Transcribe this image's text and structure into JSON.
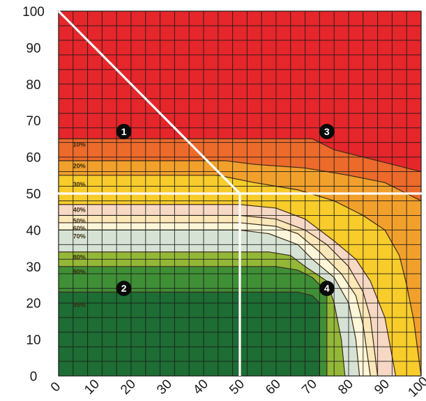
{
  "chart_data": {
    "type": "heatmap",
    "title": "",
    "xlabel": "",
    "ylabel": "",
    "xlim": [
      0,
      100
    ],
    "ylim": [
      0,
      100
    ],
    "x_ticks": [
      "0",
      "10",
      "20",
      "30",
      "40",
      "50",
      "60",
      "70",
      "80",
      "90",
      "100"
    ],
    "y_ticks": [
      "0",
      "10",
      "20",
      "30",
      "40",
      "50",
      "60",
      "70",
      "80",
      "90",
      "100"
    ],
    "grid": true,
    "band_labels": [
      {
        "text": "10%",
        "x": 4,
        "y": 63.5
      },
      {
        "text": "20%",
        "x": 4,
        "y": 57.5
      },
      {
        "text": "30%",
        "x": 4,
        "y": 52.5
      },
      {
        "text": "40%",
        "x": 4,
        "y": 45.5
      },
      {
        "text": "50%",
        "x": 4,
        "y": 42.5
      },
      {
        "text": "60%",
        "x": 4,
        "y": 40.5
      },
      {
        "text": "70%",
        "x": 4,
        "y": 38.3
      },
      {
        "text": "80%",
        "x": 4,
        "y": 32.5
      },
      {
        "text": "90%",
        "x": 4,
        "y": 28.5
      },
      {
        "text": "95%",
        "x": 4,
        "y": 19.5
      }
    ],
    "band_boundaries": [
      {
        "label": "10%",
        "points": [
          [
            0,
            65
          ],
          [
            42,
            65
          ],
          [
            70,
            65
          ],
          [
            76,
            62
          ],
          [
            92,
            58
          ],
          [
            100,
            56
          ]
        ]
      },
      {
        "label": "20%",
        "points": [
          [
            0,
            59
          ],
          [
            32,
            59
          ],
          [
            46,
            59
          ],
          [
            54,
            58
          ],
          [
            68,
            57
          ],
          [
            80,
            55
          ],
          [
            90,
            53
          ],
          [
            96,
            50
          ],
          [
            100,
            48
          ]
        ]
      },
      {
        "label": "30%",
        "points": [
          [
            0,
            55
          ],
          [
            44,
            55
          ],
          [
            54,
            53
          ],
          [
            66,
            51
          ],
          [
            76,
            48
          ],
          [
            84,
            44
          ],
          [
            90,
            40
          ],
          [
            94,
            33
          ],
          [
            96,
            25
          ],
          [
            98,
            15
          ],
          [
            100,
            0
          ]
        ]
      },
      {
        "label": "40%",
        "points": [
          [
            0,
            47
          ],
          [
            50,
            47
          ],
          [
            60,
            46
          ],
          [
            68,
            43
          ],
          [
            76,
            37
          ],
          [
            82,
            32
          ],
          [
            86,
            26
          ],
          [
            90,
            16
          ],
          [
            93,
            0
          ]
        ]
      },
      {
        "label": "50%",
        "points": [
          [
            0,
            44
          ],
          [
            50,
            44
          ],
          [
            60,
            43
          ],
          [
            68,
            40
          ],
          [
            74,
            36
          ],
          [
            80,
            30
          ],
          [
            84,
            23
          ],
          [
            86,
            16
          ],
          [
            88,
            0
          ]
        ]
      },
      {
        "label": "60%",
        "points": [
          [
            0,
            42
          ],
          [
            50,
            42
          ],
          [
            60,
            41
          ],
          [
            66,
            39
          ],
          [
            72,
            34
          ],
          [
            78,
            28
          ],
          [
            82,
            22
          ],
          [
            84,
            14
          ],
          [
            86,
            0
          ]
        ]
      },
      {
        "label": "70%",
        "points": [
          [
            0,
            40
          ],
          [
            50,
            40
          ],
          [
            58,
            39
          ],
          [
            66,
            36
          ],
          [
            70,
            32
          ],
          [
            76,
            27
          ],
          [
            80,
            20
          ],
          [
            82,
            10
          ],
          [
            83,
            0
          ]
        ]
      },
      {
        "label": "80%",
        "points": [
          [
            0,
            34
          ],
          [
            50,
            34
          ],
          [
            58,
            34
          ],
          [
            64,
            33
          ],
          [
            68,
            30
          ],
          [
            74,
            26
          ],
          [
            76,
            20
          ],
          [
            78,
            10
          ],
          [
            79,
            0
          ]
        ]
      },
      {
        "label": "90%",
        "points": [
          [
            0,
            30
          ],
          [
            50,
            30
          ],
          [
            60,
            30
          ],
          [
            66,
            29
          ],
          [
            70,
            27
          ],
          [
            74,
            23
          ],
          [
            74,
            0
          ]
        ]
      },
      {
        "label": "95%",
        "points": [
          [
            0,
            23
          ],
          [
            60,
            23
          ],
          [
            66,
            23
          ],
          [
            70,
            22
          ],
          [
            72,
            20
          ],
          [
            72,
            0
          ]
        ]
      }
    ],
    "zone_colors": [
      "#e5262b",
      "#ec6a2a",
      "#f2a02c",
      "#f7cc2b",
      "#f6d8c4",
      "#fbe7b8",
      "#fdf6d8",
      "#d6e3d4",
      "#93b838",
      "#3f8f36",
      "#1d6d34"
    ],
    "divider_lines": [
      {
        "kind": "horizontal",
        "y": 50
      },
      {
        "kind": "vertical",
        "x": 50
      },
      {
        "kind": "diagonal",
        "from": [
          0,
          100
        ],
        "to": [
          50,
          50
        ]
      }
    ],
    "markers": [
      {
        "label": "1",
        "x": 18,
        "y": 67
      },
      {
        "label": "2",
        "x": 18,
        "y": 24
      },
      {
        "label": "3",
        "x": 74,
        "y": 67
      },
      {
        "label": "4",
        "x": 74,
        "y": 24
      }
    ]
  }
}
